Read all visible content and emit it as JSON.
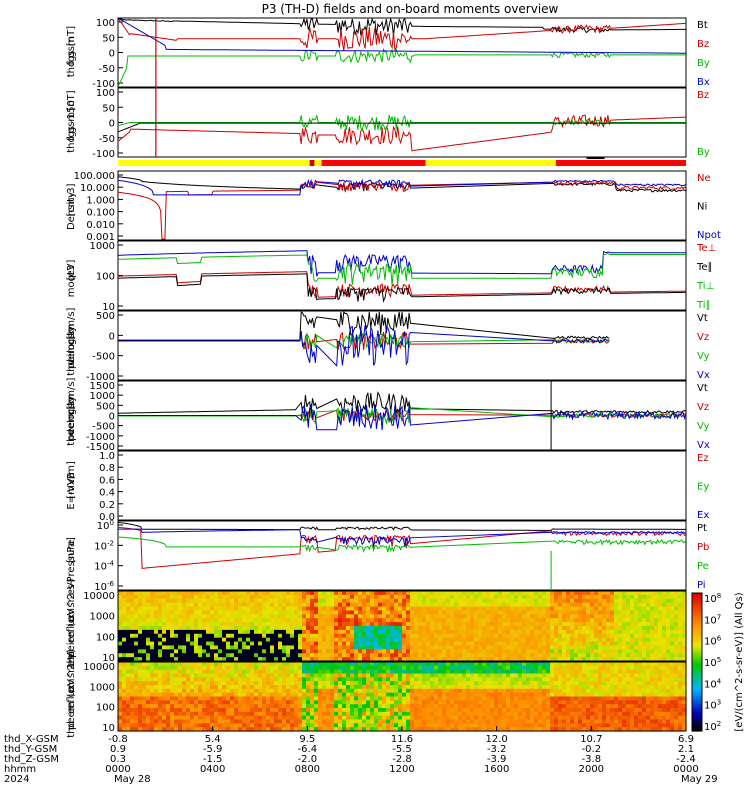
{
  "title": "P3 (TH-D) fields and on-board moments overview",
  "chart_data": {
    "type": "line",
    "panels": [
      {
        "id": "fgs",
        "ylabel": [
          "thd",
          "fgs",
          "gsm",
          "[nT]"
        ],
        "yticks": [
          "100",
          "50",
          "0",
          "-50",
          "-100"
        ],
        "ylim": [
          -100,
          100
        ],
        "scale": "linear",
        "legend": [
          {
            "text": "Bt",
            "color": "#000000"
          },
          {
            "text": "Bz",
            "color": "#cc0000"
          },
          {
            "text": "By",
            "color": "#00bb00"
          },
          {
            "text": "Bx",
            "color": "#0000cc"
          }
        ]
      },
      {
        "id": "fgs_zoom",
        "ylabel": [
          "thd",
          "fgs",
          "gsm",
          "-150",
          "[nT]"
        ],
        "yticks": [
          "100",
          "50",
          "0",
          "-50",
          "-100"
        ],
        "ylim": [
          -120,
          100
        ],
        "scale": "linear",
        "legend": [
          {
            "text": "Bz",
            "color": "#cc0000"
          },
          {
            "text": "By",
            "color": "#00bb00"
          }
        ]
      },
      {
        "id": "density",
        "ylabel": [
          "Density",
          "[cm-3]"
        ],
        "yticks": [
          "100.000",
          "10.000",
          "1.000",
          "0.100",
          "0.010",
          "0.001"
        ],
        "ylim": [
          0.0005,
          300
        ],
        "scale": "log",
        "legend": [
          {
            "text": "Ne",
            "color": "#cc0000"
          },
          {
            "text": "Ni",
            "color": "#000000"
          },
          {
            "text": "Npot",
            "color": "#0000cc"
          }
        ]
      },
      {
        "id": "temp",
        "ylabel": [
          "moqt3",
          "[eV]"
        ],
        "yticks": [
          "1000",
          "100",
          "10"
        ],
        "ylim": [
          6,
          12000
        ],
        "scale": "log",
        "legend": [
          {
            "text": "Te⊥",
            "color": "#cc0000"
          },
          {
            "text": "Te∥",
            "color": "#000000"
          },
          {
            "text": "Ti⊥",
            "color": "#00bb00"
          },
          {
            "text": "Ti∥",
            "color": "#00bb00"
          }
        ]
      },
      {
        "id": "peim",
        "ylabel": [
          "thd",
          "peim",
          "velocity",
          "gsm",
          "[km/s]"
        ],
        "yticks": [
          "500",
          "0",
          "-500",
          "-1000"
        ],
        "ylim": [
          -1300,
          1000
        ],
        "scale": "linear",
        "legend": [
          {
            "text": "Vt",
            "color": "#000000"
          },
          {
            "text": "Vz",
            "color": "#cc0000"
          },
          {
            "text": "Vy",
            "color": "#00bb00"
          },
          {
            "text": "Vx",
            "color": "#0000cc"
          }
        ]
      },
      {
        "id": "peem",
        "ylabel": [
          "thd",
          "peem",
          "velocity",
          "gsm",
          "[km/s]"
        ],
        "yticks": [
          "1500",
          "1000",
          "500",
          "0",
          "-500",
          "-1000",
          "-1500"
        ],
        "ylim": [
          -1500,
          1500
        ],
        "scale": "linear",
        "legend": [
          {
            "text": "Vt",
            "color": "#000000"
          },
          {
            "text": "Vz",
            "color": "#cc0000"
          },
          {
            "text": "Vy",
            "color": "#00bb00"
          },
          {
            "text": "Vx",
            "color": "#0000cc"
          }
        ]
      },
      {
        "id": "efield",
        "ylabel": [
          "E=-VxB",
          "[mV/m]"
        ],
        "yticks": [
          "1.0",
          "0.8",
          "0.6",
          "0.4",
          "0.2",
          "0.0"
        ],
        "ylim": [
          0,
          1
        ],
        "scale": "linear",
        "legend": [
          {
            "text": "Ez",
            "color": "#cc0000"
          },
          {
            "text": "Ey",
            "color": "#00bb00"
          },
          {
            "text": "Ex",
            "color": "#0000cc"
          }
        ]
      },
      {
        "id": "pressure",
        "ylabel": [
          "Pressure",
          "[nPa]"
        ],
        "yticks": [
          "10^0",
          "10^-2",
          "10^-4",
          "10^-6"
        ],
        "ylim": [
          1e-07,
          30
        ],
        "scale": "log",
        "legend": [
          {
            "text": "Pt",
            "color": "#000000"
          },
          {
            "text": "Pb",
            "color": "#cc0000"
          },
          {
            "text": "Pe",
            "color": "#00bb00"
          },
          {
            "text": "Pi",
            "color": "#0000cc"
          }
        ]
      },
      {
        "id": "peir",
        "ylabel": [
          "thd",
          "peir",
          "en",
          "eflux",
          "eV",
          "(cm^2-s-",
          "sr-eV)"
        ],
        "yticks": [
          "10000",
          "1000",
          "100",
          "10"
        ],
        "scale": "log"
      },
      {
        "id": "peer",
        "ylabel": [
          "thd",
          "peer",
          "en",
          "eflux",
          "eV",
          "(cm^2-s-",
          "sr-eV)"
        ],
        "yticks": [
          "10000",
          "1000",
          "100",
          "10"
        ],
        "scale": "log"
      }
    ],
    "colorbar": {
      "label": "[eV/(cm^2-s-sr-eV)] (All Qs)",
      "ticks": [
        "10^8",
        "10^7",
        "10^6",
        "10^5",
        "10^4",
        "10^3",
        "10^2"
      ]
    },
    "x_axis": {
      "labels": [
        "thd_X-GSM",
        "thd_Y-GSM",
        "thd_Z-GSM",
        "hhmm",
        "2024"
      ],
      "columns": [
        {
          "x": "-0.8",
          "y": "0.9",
          "z": "0.3",
          "hhmm": "0000",
          "date": "May 28"
        },
        {
          "x": "5.4",
          "y": "-5.9",
          "z": "-1.5",
          "hhmm": "0400",
          "date": ""
        },
        {
          "x": "9.5",
          "y": "-6.4",
          "z": "-2.0",
          "hhmm": "0800",
          "date": ""
        },
        {
          "x": "11.6",
          "y": "-5.5",
          "z": "-2.8",
          "hhmm": "1200",
          "date": ""
        },
        {
          "x": "12.0",
          "y": "-3.2",
          "z": "-3.9",
          "hhmm": "1600",
          "date": ""
        },
        {
          "x": "10.7",
          "y": "-0.2",
          "z": "-3.8",
          "hhmm": "2000",
          "date": ""
        },
        {
          "x": "6.9",
          "y": "2.1",
          "z": "-2.4",
          "hhmm": "0000",
          "date": "May 29"
        }
      ]
    },
    "grid": false,
    "legend_placement": "right",
    "colors": {
      "black": "#000000",
      "red": "#cc0000",
      "green": "#00bb00",
      "blue": "#0000cc",
      "yellow": "#ffff00"
    }
  }
}
